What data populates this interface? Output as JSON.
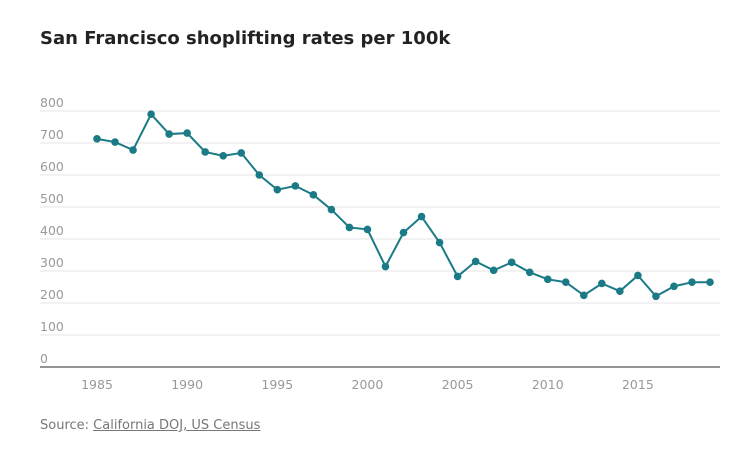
{
  "chart_data": {
    "type": "line",
    "title": "San Francisco shoplifting rates per 100k",
    "xlabel": "",
    "ylabel": "",
    "ylim": [
      0,
      800
    ],
    "xlim": [
      1982,
      2020
    ],
    "yticks": [
      0,
      100,
      200,
      300,
      400,
      500,
      600,
      700,
      800
    ],
    "xticks": [
      1985,
      1990,
      1995,
      2000,
      2005,
      2010,
      2015
    ],
    "grid": true,
    "color": "#1a7a86",
    "x": [
      1985,
      1986,
      1987,
      1988,
      1989,
      1990,
      1991,
      1992,
      1993,
      1994,
      1995,
      1996,
      1997,
      1998,
      1999,
      2000,
      2001,
      2002,
      2003,
      2004,
      2005,
      2006,
      2007,
      2008,
      2009,
      2010,
      2011,
      2012,
      2013,
      2014,
      2015,
      2016,
      2017,
      2018,
      2019
    ],
    "y": [
      713,
      703,
      678,
      790,
      728,
      731,
      672,
      660,
      669,
      600,
      554,
      566,
      538,
      492,
      436,
      430,
      314,
      420,
      470,
      389,
      283,
      330,
      302,
      327,
      296,
      274,
      265,
      224,
      261,
      237,
      286,
      221,
      252,
      265,
      265
    ]
  },
  "source": {
    "prefix": "Source: ",
    "link": "California DOJ, US Census"
  }
}
